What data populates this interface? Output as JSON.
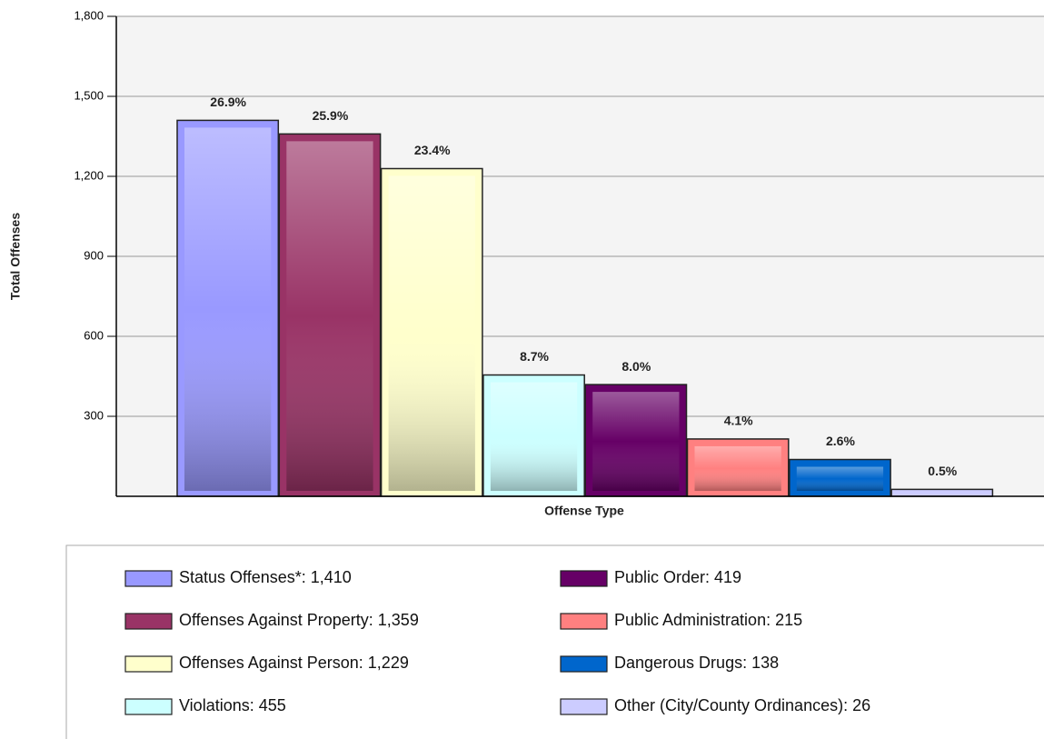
{
  "chart_data": {
    "type": "bar",
    "y_label": "Total Offenses",
    "x_label": "Offense Type",
    "values": [
      1410,
      1359,
      1229,
      455,
      419,
      215,
      138,
      26
    ],
    "value_labels": [
      "26.9%",
      "25.9%",
      "23.4%",
      "8.7%",
      "8.0%",
      "4.1%",
      "2.6%",
      "0.5%"
    ],
    "colors": [
      "#9999ff",
      "#993366",
      "#ffffcc",
      "#ccffff",
      "#660066",
      "#ff8080",
      "#0066cc",
      "#ccccff"
    ],
    "legend": [
      "Status Offenses*:  1,410",
      "Offenses Against Property:  1,359",
      "Offenses Against Person:  1,229",
      "Violations:  455",
      "Public Order:  419",
      "Public Administration:  215",
      "Dangerous Drugs:  138",
      "Other (City/County Ordinances):  26"
    ],
    "ylim": [
      0,
      1800
    ],
    "yticks": [
      {
        "value": 1800,
        "label": "1,800"
      },
      {
        "value": 1500,
        "label": "1,500"
      },
      {
        "value": 1200,
        "label": "1,200"
      },
      900,
      600,
      300
    ],
    "grid": true
  }
}
